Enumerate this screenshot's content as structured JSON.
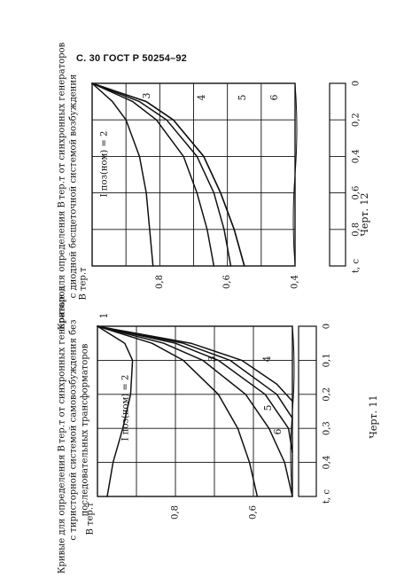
{
  "header": "С. 30  ГОСТ Р 50254–92",
  "chart_data": [
    {
      "type": "line",
      "title_lines": [
        "Кривые для определения B тер.т от синхронных генераторов",
        "с тиристорной системой самовозбуждения без",
        "последовательных трансформаторов"
      ],
      "caption": "Черт. 11",
      "ylabel": "B тер.т",
      "xlabel": "t, с",
      "xlim": [
        0,
        0.5
      ],
      "ylim": [
        0.5,
        1.0
      ],
      "y_ticks": [
        "0,6",
        "0,8"
      ],
      "x_ticks": [
        "0",
        "0,1",
        "0,2",
        "0,3",
        "0,4",
        "t, с"
      ],
      "curve_label_prefix": "I поз(ном) =",
      "series": [
        {
          "name": "1",
          "x": [
            0,
            0.05,
            0.1,
            0.2,
            0.3,
            0.4,
            0.5
          ],
          "y": [
            1.0,
            0.93,
            0.91,
            0.915,
            0.935,
            0.96,
            0.975
          ]
        },
        {
          "name": "2",
          "x": [
            0,
            0.05,
            0.1,
            0.2,
            0.3,
            0.4,
            0.5
          ],
          "y": [
            1.0,
            0.86,
            0.78,
            0.69,
            0.64,
            0.61,
            0.59
          ]
        },
        {
          "name": "3",
          "x": [
            0,
            0.05,
            0.1,
            0.2,
            0.3,
            0.4,
            0.5
          ],
          "y": [
            1.0,
            0.83,
            0.73,
            0.62,
            0.56,
            0.52,
            0.5
          ]
        },
        {
          "name": "4",
          "x": [
            0,
            0.05,
            0.1,
            0.2,
            0.3,
            0.37
          ],
          "y": [
            1.0,
            0.8,
            0.69,
            0.57,
            0.51,
            0.5
          ]
        },
        {
          "name": "5",
          "x": [
            0,
            0.05,
            0.1,
            0.2,
            0.27
          ],
          "y": [
            1.0,
            0.78,
            0.66,
            0.54,
            0.5
          ]
        },
        {
          "name": "6",
          "x": [
            0,
            0.05,
            0.1,
            0.17,
            0.22
          ],
          "y": [
            1.0,
            0.76,
            0.63,
            0.54,
            0.5
          ]
        }
      ]
    },
    {
      "type": "line",
      "title_lines": [
        "Кривые для определения B тер.т от синхронных генераторов",
        "с диодной бесщеточной системой возбуждения"
      ],
      "caption": "Черт. 12",
      "ylabel": "B тер.т",
      "xlabel": "t, с",
      "xlim": [
        0,
        1.0
      ],
      "ylim": [
        0.4,
        1.0
      ],
      "y_ticks": [
        "0,4",
        "0,6",
        "0,8"
      ],
      "x_ticks": [
        "0",
        "0,2",
        "0,4",
        "0,6",
        "0,8",
        "t, с"
      ],
      "curve_label_prefix": "I поз(ном) =",
      "series": [
        {
          "name": "2",
          "x": [
            0,
            0.1,
            0.2,
            0.4,
            0.6,
            0.8,
            1.0
          ],
          "y": [
            1.0,
            0.84,
            0.76,
            0.67,
            0.62,
            0.58,
            0.55
          ]
        },
        {
          "name": "3",
          "x": [
            0,
            0.1,
            0.2,
            0.4,
            0.6,
            0.8,
            1.0
          ],
          "y": [
            1.0,
            0.94,
            0.9,
            0.86,
            0.84,
            0.83,
            0.82
          ]
        },
        {
          "name": "4",
          "x": [
            0,
            0.1,
            0.2,
            0.4,
            0.6,
            0.8,
            1.0
          ],
          "y": [
            1.0,
            0.88,
            0.81,
            0.73,
            0.69,
            0.66,
            0.64
          ]
        },
        {
          "name": "5",
          "x": [
            0,
            0.1,
            0.2,
            0.4,
            0.6,
            0.8,
            1.0
          ],
          "y": [
            1.0,
            0.86,
            0.78,
            0.69,
            0.64,
            0.61,
            0.59
          ]
        },
        {
          "name": "6",
          "x": [
            0,
            0.1,
            0.2,
            0.4,
            0.6,
            0.8,
            1.0
          ],
          "y": [
            1.0,
            0.84,
            0.76,
            0.67,
            0.62,
            0.58,
            0.55
          ]
        }
      ]
    }
  ]
}
